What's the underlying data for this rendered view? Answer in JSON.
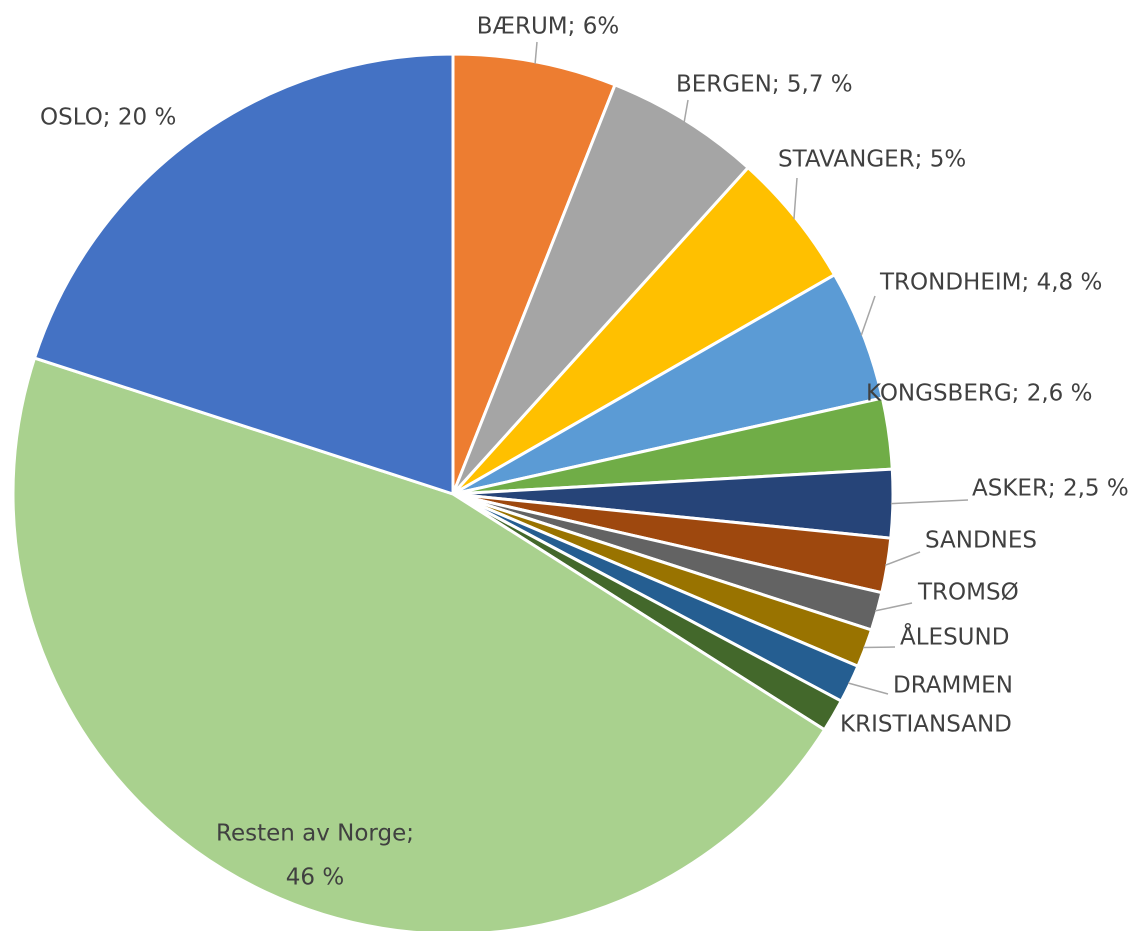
{
  "chart_data": {
    "type": "pie",
    "labels": [
      [
        "BÆRUM; 6%"
      ],
      [
        "BERGEN; 5,7 %"
      ],
      [
        "STAVANGER; 5%"
      ],
      [
        "TRONDHEIM; 4,8 %"
      ],
      [
        "KONGSBERG; 2,6 %"
      ],
      [
        "ASKER; 2,5 %"
      ],
      [
        "SANDNES"
      ],
      [
        "TROMSØ"
      ],
      [
        "ÅLESUND"
      ],
      [
        "DRAMMEN"
      ],
      [
        "KRISTIANSAND"
      ],
      [
        "Resten av Norge;",
        "46 %"
      ],
      [
        "OSLO; 20 %"
      ]
    ],
    "values": [
      6,
      5.7,
      5,
      4.8,
      2.6,
      2.5,
      2.0,
      1.4,
      1.4,
      1.4,
      1.2,
      46,
      20
    ],
    "colors": [
      "#ed7d31",
      "#a5a5a5",
      "#ffc000",
      "#5b9bd5",
      "#70ad47",
      "#264478",
      "#9e480e",
      "#636363",
      "#997300",
      "#255e91",
      "#43682b",
      "#a9d18e",
      "#4472c4"
    ]
  }
}
